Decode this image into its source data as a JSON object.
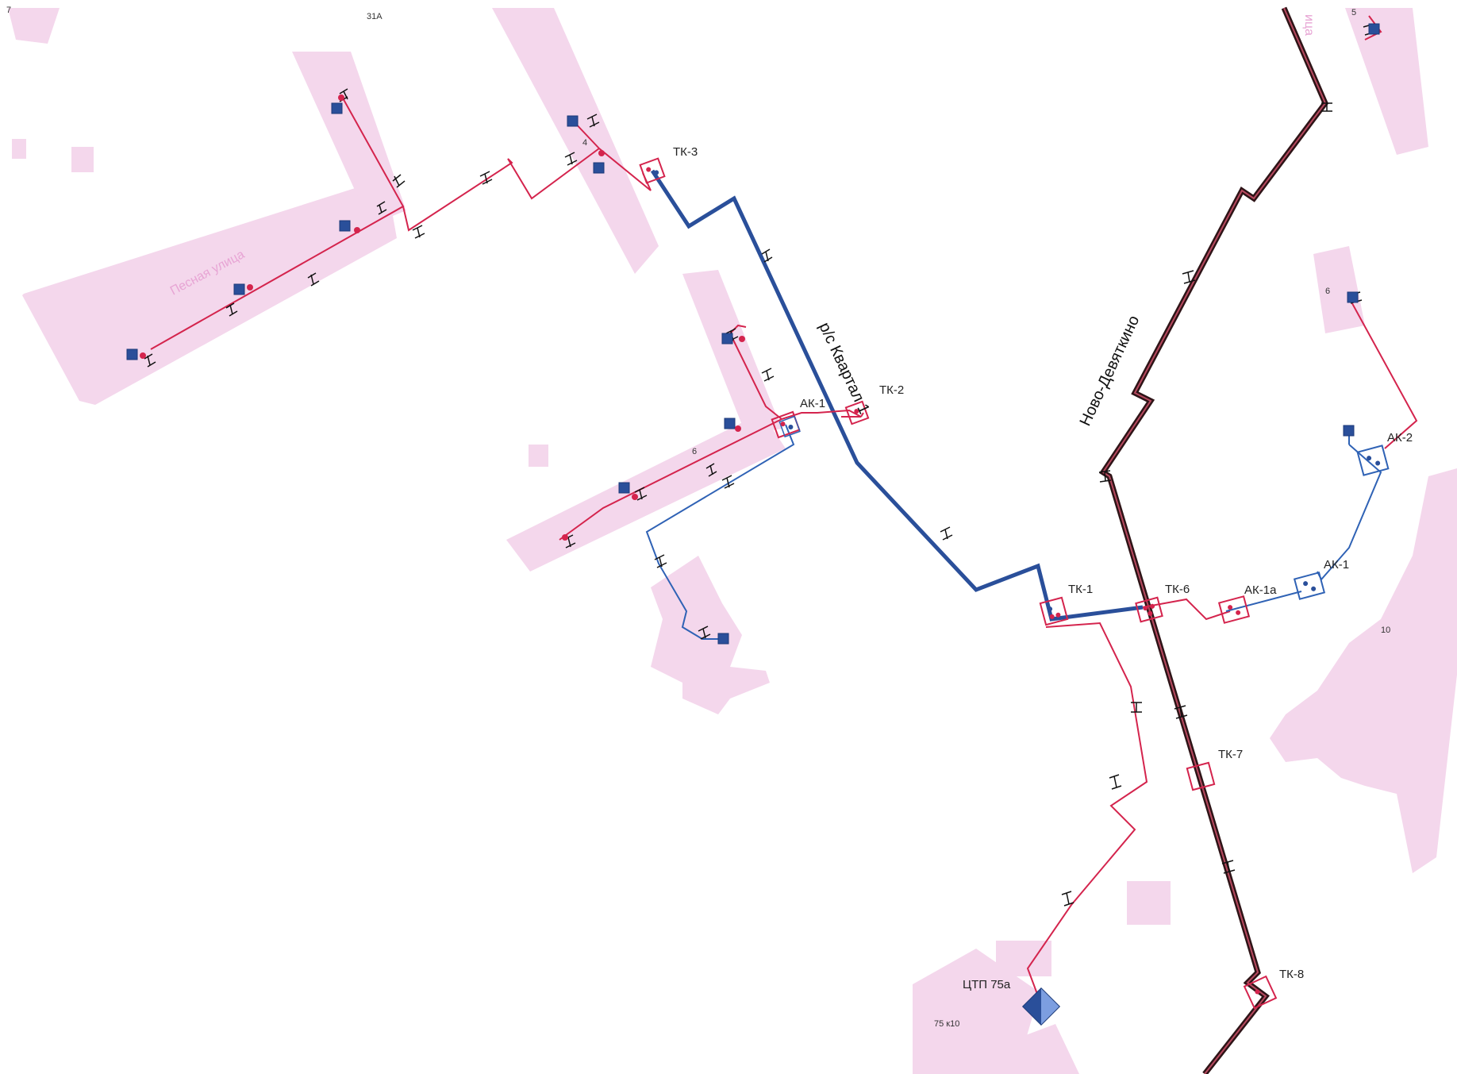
{
  "map": {
    "labels": {
      "tk3": "ТК-3",
      "tk2": "ТК-2",
      "tk1": "ТК-1",
      "tk6": "ТК-6",
      "tk7": "ТК-7",
      "tk8": "ТК-8",
      "ak1_left": "АК-1",
      "ak1_right": "АК-1",
      "ak1a": "АК-1а",
      "ak2": "АК-2",
      "ctp": "ЦТП 75а",
      "pipe_blue": "р/с Квартал 1",
      "pipe_main": "Ново-Девяткино",
      "street": "Песная улица"
    },
    "building_numbers": {
      "b7": "7",
      "b31a": "31А",
      "b4": "4",
      "b6a": "6",
      "b6b": "6",
      "b5": "5",
      "b10": "10",
      "b75": "75 к10"
    },
    "colors": {
      "building": "#f4d7ec",
      "supply_pipe": "#d4244d",
      "return_pipe": "#2f62b5",
      "main_pipe_outer": "#2e1417",
      "main_pipe_inner": "#b7495f",
      "blue_main": "#2a4f9a"
    }
  }
}
